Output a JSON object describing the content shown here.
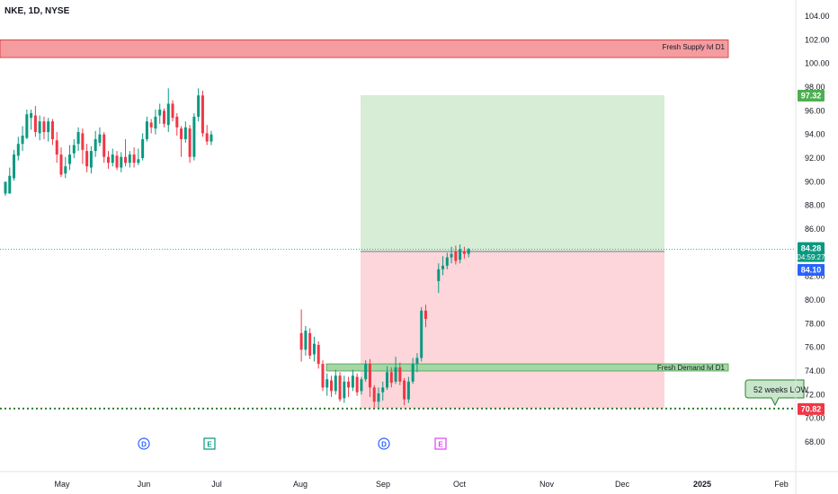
{
  "header": {
    "symbol_label": "NKE, 1D, NYSE"
  },
  "price_labels": {
    "target": "97.32",
    "last": "84.28",
    "countdown": "04:59:27",
    "entry": "84.10",
    "low": "70.82"
  },
  "zones": {
    "supply_label": "Fresh Supply lvl D1",
    "demand_label": "Fresh Demand lvl D1"
  },
  "annotation": {
    "low_callout": "52 weeks LOW"
  },
  "event_markers": [
    "D",
    "E",
    "D",
    "E"
  ],
  "colors": {
    "up": "#089981",
    "down": "#f23645",
    "profit_zone": "#d7edd6",
    "loss_zone": "#fcd6da",
    "supply_fill": "#f49ca0",
    "demand_fill": "#a5d6a7",
    "low_line": "#2e7d32",
    "entry_badge": "#2962ff"
  },
  "chart_data": {
    "type": "candlestick",
    "title": "NKE, 1D, NYSE",
    "y_axis_ticks": [
      "104.00",
      "102.00",
      "100.00",
      "98.00",
      "96.00",
      "94.00",
      "92.00",
      "90.00",
      "88.00",
      "86.00",
      "84.00",
      "82.00",
      "80.00",
      "78.00",
      "76.00",
      "74.00",
      "72.00",
      "70.00",
      "68.00"
    ],
    "x_axis_ticks": [
      "May",
      "Jun",
      "Jul",
      "Aug",
      "Sep",
      "Oct",
      "Nov",
      "Dec",
      "2025",
      "Feb"
    ],
    "ylim": [
      66.5,
      105
    ],
    "grid": false,
    "supply_zone": {
      "label": "Fresh Supply lvl D1",
      "from": 100.5,
      "to": 102.0
    },
    "demand_zone": {
      "label": "Fresh Demand lvl D1",
      "from": 74.0,
      "to": 74.6
    },
    "position": {
      "entry": 84.1,
      "target": 97.32,
      "stop": 70.82
    },
    "last_price": 84.28,
    "low_52w": 70.82,
    "candles": [
      [
        89,
        90,
        89.2,
        88.8,
        89.0
      ],
      [
        89,
        90.5,
        91.2,
        89.5,
        90.3
      ],
      [
        90.3,
        92.3,
        92.7,
        90.1,
        91.8
      ],
      [
        92.2,
        93.2,
        93.8,
        91.8,
        92.5
      ],
      [
        93.2,
        93.9,
        94.7,
        92.6,
        93.6
      ],
      [
        93.7,
        95.7,
        96.1,
        93.6,
        95.3
      ],
      [
        95.4,
        95.8,
        96.1,
        94.4,
        95.0
      ],
      [
        95.6,
        94.2,
        96.4,
        93.8,
        94.5
      ],
      [
        94.1,
        95.1,
        95.6,
        93.5,
        94.8
      ],
      [
        95.1,
        94.2,
        95.5,
        93.6,
        94.4
      ],
      [
        94.2,
        95.1,
        95.4,
        93.4,
        94.6
      ],
      [
        95.1,
        93.6,
        95.3,
        93.1,
        94.0
      ],
      [
        93.5,
        92.3,
        94.2,
        91.6,
        93.0
      ],
      [
        92.3,
        90.6,
        92.9,
        90.4,
        91.5
      ],
      [
        90.7,
        91.3,
        92.1,
        90.3,
        91.0
      ],
      [
        91.5,
        92.3,
        93.1,
        91.0,
        92.0
      ],
      [
        92.4,
        93.1,
        93.6,
        92.0,
        92.8
      ],
      [
        93.2,
        94.2,
        94.6,
        92.6,
        93.5
      ],
      [
        94.1,
        92.7,
        94.5,
        91.5,
        93.2
      ],
      [
        92.6,
        91.3,
        93.2,
        90.8,
        91.8
      ],
      [
        91.2,
        92.6,
        93.0,
        90.7,
        92.0
      ],
      [
        92.6,
        93.6,
        94.3,
        92.1,
        93.0
      ],
      [
        93.3,
        94.0,
        94.6,
        93.0,
        93.9
      ],
      [
        94.0,
        92.1,
        94.2,
        91.6,
        92.8
      ],
      [
        92.1,
        91.6,
        92.6,
        91.1,
        91.8
      ],
      [
        91.6,
        92.3,
        92.8,
        91.3,
        92.0
      ],
      [
        92.2,
        91.2,
        92.6,
        91.0,
        91.5
      ],
      [
        91.2,
        92.1,
        92.5,
        90.8,
        91.7
      ],
      [
        92.1,
        91.6,
        93.6,
        91.3,
        92.2
      ],
      [
        91.6,
        92.3,
        92.6,
        91.2,
        92.0
      ],
      [
        92.3,
        91.6,
        92.9,
        91.2,
        91.8
      ],
      [
        91.6,
        91.9,
        92.8,
        91.4,
        91.9
      ],
      [
        92.0,
        93.6,
        94.1,
        91.8,
        93.0
      ],
      [
        93.6,
        95.1,
        95.5,
        93.4,
        94.5
      ],
      [
        95.0,
        94.6,
        95.3,
        94.1,
        94.8
      ],
      [
        94.5,
        95.5,
        96.1,
        94.0,
        95.1
      ],
      [
        95.6,
        96.1,
        96.6,
        94.9,
        95.8
      ],
      [
        96.0,
        94.9,
        96.2,
        94.6,
        95.4
      ],
      [
        94.8,
        96.6,
        97.9,
        94.2,
        96.2
      ],
      [
        96.6,
        95.4,
        96.9,
        95.1,
        96.0
      ],
      [
        95.5,
        94.6,
        95.8,
        93.9,
        94.9
      ],
      [
        94.5,
        93.6,
        94.7,
        92.1,
        93.7
      ],
      [
        93.6,
        94.6,
        95.1,
        93.3,
        94.3
      ],
      [
        94.5,
        92.1,
        94.8,
        91.6,
        93.5
      ],
      [
        92.1,
        95.5,
        95.8,
        91.8,
        94.0
      ],
      [
        95.5,
        97.3,
        97.9,
        95.1,
        96.5
      ],
      [
        97.3,
        94.1,
        97.7,
        93.8,
        95.5
      ],
      [
        94.1,
        93.4,
        94.8,
        93.1,
        94.0
      ],
      [
        93.4,
        94.0,
        94.3,
        93.1,
        93.8
      ],
      [
        null,
        null,
        null,
        null,
        null
      ],
      [
        null,
        null,
        null,
        null,
        null
      ],
      [
        null,
        null,
        null,
        null,
        null
      ],
      [
        null,
        null,
        null,
        null,
        null
      ],
      [
        null,
        null,
        null,
        null,
        null
      ],
      [
        null,
        null,
        null,
        null,
        null
      ],
      [
        null,
        null,
        null,
        null,
        null
      ],
      [
        null,
        null,
        null,
        null,
        null
      ],
      [
        null,
        null,
        null,
        null,
        null
      ],
      [
        null,
        null,
        null,
        null,
        null
      ],
      [
        null,
        null,
        null,
        null,
        null
      ],
      [
        null,
        null,
        null,
        null,
        null
      ],
      [
        null,
        null,
        null,
        null,
        null
      ],
      [
        null,
        null,
        null,
        null,
        null
      ],
      [
        null,
        null,
        null,
        null,
        null
      ],
      [
        null,
        null,
        null,
        null,
        null
      ],
      [
        null,
        null,
        null,
        null,
        null
      ],
      [
        null,
        null,
        null,
        null,
        null
      ],
      [
        null,
        null,
        null,
        null,
        null
      ],
      [
        null,
        null,
        null,
        null,
        null
      ],
      [
        77.2,
        75.8,
        79.2,
        74.8,
        76.4
      ],
      [
        75.8,
        77.4,
        77.8,
        75.3,
        76.6
      ],
      [
        77.2,
        75.3,
        77.6,
        75.0,
        76.1
      ],
      [
        75.4,
        76.3,
        76.9,
        74.8,
        75.8
      ],
      [
        76.2,
        74.6,
        76.5,
        74.2,
        75.1
      ],
      [
        74.6,
        72.6,
        74.9,
        72.3,
        73.4
      ],
      [
        72.6,
        73.3,
        73.8,
        71.9,
        72.8
      ],
      [
        73.2,
        72.3,
        73.6,
        71.8,
        72.7
      ],
      [
        72.3,
        73.6,
        74.1,
        72.0,
        72.9
      ],
      [
        73.6,
        71.6,
        73.9,
        71.4,
        72.5
      ],
      [
        71.7,
        73.1,
        73.6,
        71.3,
        72.6
      ],
      [
        73.1,
        72.6,
        73.5,
        71.8,
        72.9
      ],
      [
        72.6,
        73.6,
        74.1,
        72.3,
        73.0
      ],
      [
        73.5,
        72.2,
        73.8,
        71.9,
        72.8
      ],
      [
        72.3,
        73.3,
        73.5,
        72.0,
        72.7
      ],
      [
        73.3,
        74.6,
        74.9,
        73.1,
        73.9
      ],
      [
        74.6,
        72.6,
        75.0,
        71.8,
        73.4
      ],
      [
        72.6,
        71.4,
        72.8,
        70.9,
        71.8
      ],
      [
        71.4,
        72.1,
        72.6,
        70.9,
        71.9
      ],
      [
        72.2,
        72.6,
        73.1,
        71.5,
        72.4
      ],
      [
        72.6,
        73.9,
        74.4,
        72.4,
        73.2
      ],
      [
        73.9,
        73.0,
        74.3,
        72.6,
        73.6
      ],
      [
        73.1,
        74.3,
        75.2,
        72.9,
        73.8
      ],
      [
        74.3,
        73.1,
        74.7,
        72.8,
        73.7
      ],
      [
        73.2,
        71.6,
        73.4,
        71.1,
        72.2
      ],
      [
        71.6,
        73.1,
        73.5,
        71.3,
        72.1
      ],
      [
        73.1,
        74.6,
        75.1,
        72.9,
        73.9
      ],
      [
        74.6,
        75.1,
        75.5,
        73.9,
        74.8
      ],
      [
        75.1,
        79.1,
        79.4,
        74.8,
        77.5
      ],
      [
        79.1,
        78.4,
        79.6,
        77.7,
        78.8
      ],
      [
        null,
        null,
        null,
        null,
        null
      ],
      [
        null,
        null,
        null,
        null,
        null
      ],
      [
        81.6,
        82.6,
        83.1,
        80.6,
        81.9
      ],
      [
        82.6,
        82.9,
        83.7,
        82.1,
        82.8
      ],
      [
        82.9,
        83.6,
        84.0,
        82.6,
        83.3
      ],
      [
        83.6,
        83.9,
        84.5,
        83.1,
        83.7
      ],
      [
        84.1,
        83.3,
        84.6,
        83.0,
        83.9
      ],
      [
        83.4,
        84.3,
        84.7,
        83.1,
        83.8
      ],
      [
        84.1,
        83.9,
        84.5,
        83.5,
        84.0
      ],
      [
        83.9,
        84.28,
        84.4,
        83.6,
        84.0
      ]
    ]
  }
}
